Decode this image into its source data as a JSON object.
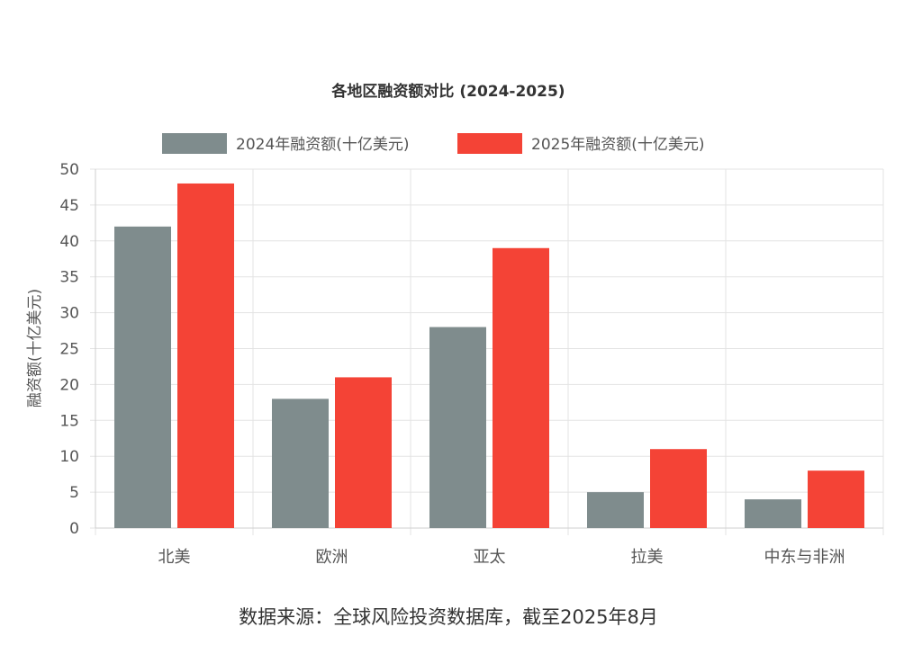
{
  "chart_data": {
    "type": "bar",
    "title": "各地区融资额对比 (2024-2025)",
    "ylabel": "融资额(十亿美元)",
    "xlabel": "",
    "categories": [
      "北美",
      "欧洲",
      "亚太",
      "拉美",
      "中东与非洲"
    ],
    "series": [
      {
        "name": "2024年融资额(十亿美元)",
        "values": [
          42,
          18,
          28,
          5,
          4
        ],
        "color": "#7f8c8d"
      },
      {
        "name": "2025年融资额(十亿美元)",
        "values": [
          48,
          21,
          39,
          11,
          8
        ],
        "color": "#f44336"
      }
    ],
    "ylim": [
      0,
      50
    ],
    "yticks": [
      0,
      5,
      10,
      15,
      20,
      25,
      30,
      35,
      40,
      45,
      50
    ],
    "grid": true,
    "legend_position": "top"
  },
  "footer": {
    "source": "数据来源：全球风险投资数据库，截至2025年8月"
  }
}
